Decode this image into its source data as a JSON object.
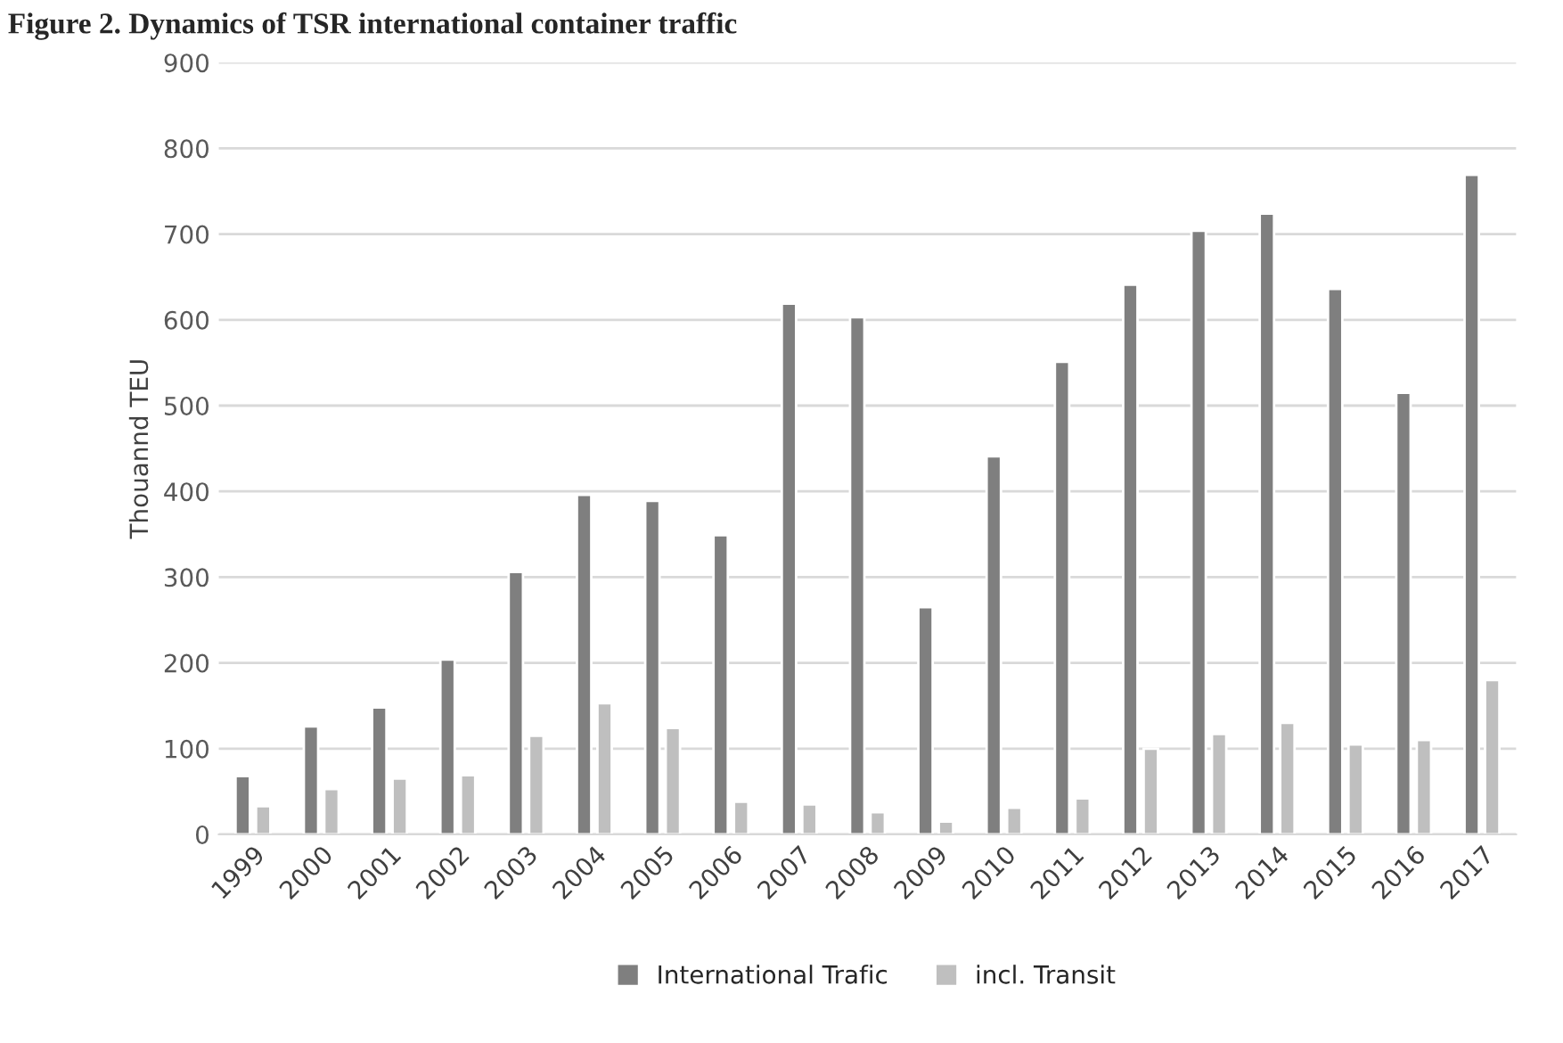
{
  "chart_data": {
    "type": "bar",
    "title": "Figure 2. Dynamics of TSR international container traffic",
    "ylabel": "Thouannd TEU",
    "categories": [
      "1999",
      "2000",
      "2001",
      "2002",
      "2003",
      "2004",
      "2005",
      "2006",
      "2007",
      "2008",
      "2009",
      "2010",
      "2011",
      "2012",
      "2013",
      "2014",
      "2015",
      "2016",
      "2017"
    ],
    "series": [
      {
        "name": "International Trafic",
        "color": "#7f7f7f",
        "values": [
          68,
          126,
          148,
          204,
          306,
          396,
          389,
          349,
          619,
          603,
          265,
          441,
          551,
          641,
          704,
          724,
          636,
          515,
          769
        ]
      },
      {
        "name": "incl. Transit",
        "color": "#bfbfbf",
        "values": [
          33,
          53,
          65,
          69,
          115,
          153,
          124,
          38,
          35,
          26,
          15,
          31,
          42,
          100,
          117,
          130,
          105,
          110,
          180
        ]
      }
    ],
    "ylim": [
      0,
      900
    ],
    "yticks": [
      0,
      100,
      200,
      300,
      400,
      500,
      600,
      700,
      800,
      900
    ],
    "grid": "y",
    "legend": "bottom"
  }
}
